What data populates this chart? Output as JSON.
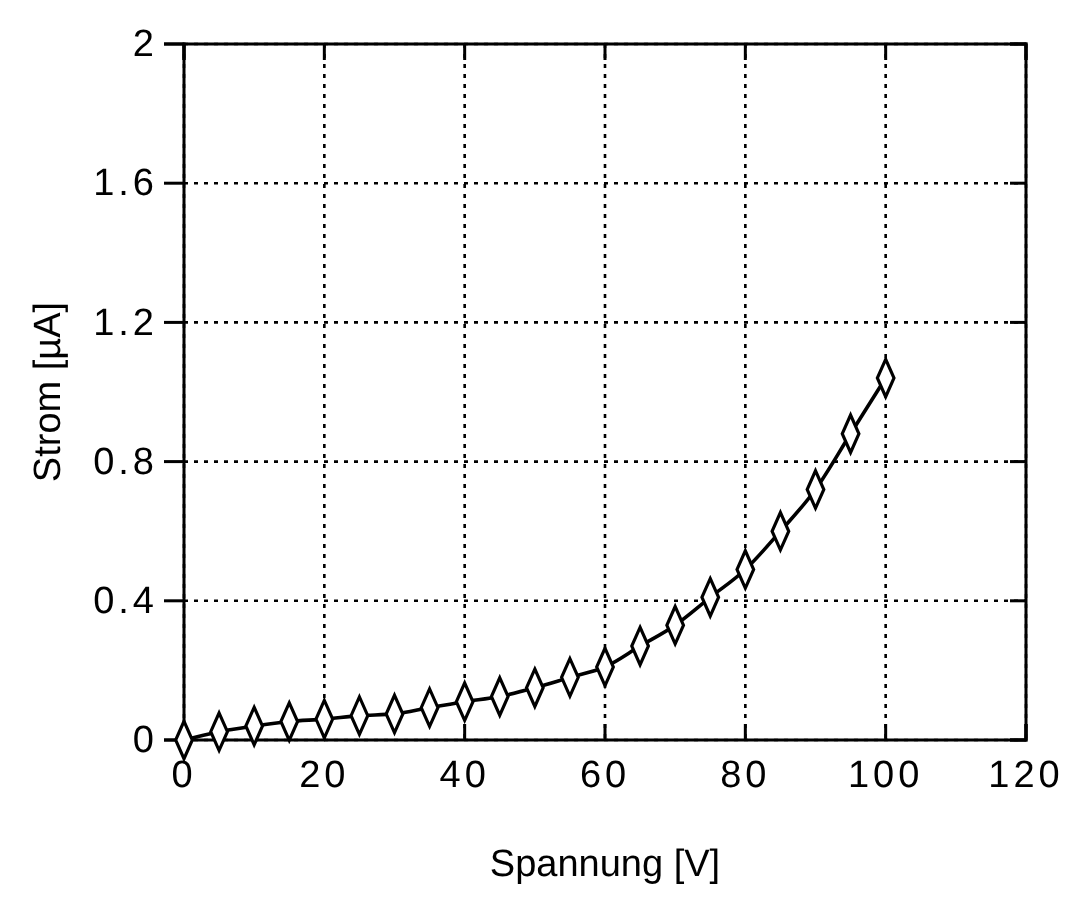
{
  "chart_data": {
    "type": "line",
    "xlabel": "Spannung [V]",
    "ylabel": "Strom  [µA]",
    "x": [
      0,
      5,
      10,
      15,
      20,
      25,
      30,
      35,
      40,
      45,
      50,
      55,
      60,
      65,
      70,
      75,
      80,
      85,
      90,
      95,
      100
    ],
    "series": [
      {
        "color": "#000000",
        "values": [
          0,
          0.024,
          0.04,
          0.053,
          0.06,
          0.07,
          0.075,
          0.093,
          0.11,
          0.125,
          0.15,
          0.18,
          0.21,
          0.27,
          0.33,
          0.41,
          0.49,
          0.6,
          0.72,
          0.88,
          1.04
        ]
      }
    ],
    "xlim": [
      0,
      120
    ],
    "xticks": [
      0,
      20,
      40,
      60,
      80,
      100,
      120
    ],
    "ylim": [
      0,
      2
    ],
    "yticks": [
      0,
      0.4,
      0.8,
      1.2,
      1.6,
      2
    ],
    "grid": true,
    "marker": "diamond",
    "line_style": "solid"
  }
}
